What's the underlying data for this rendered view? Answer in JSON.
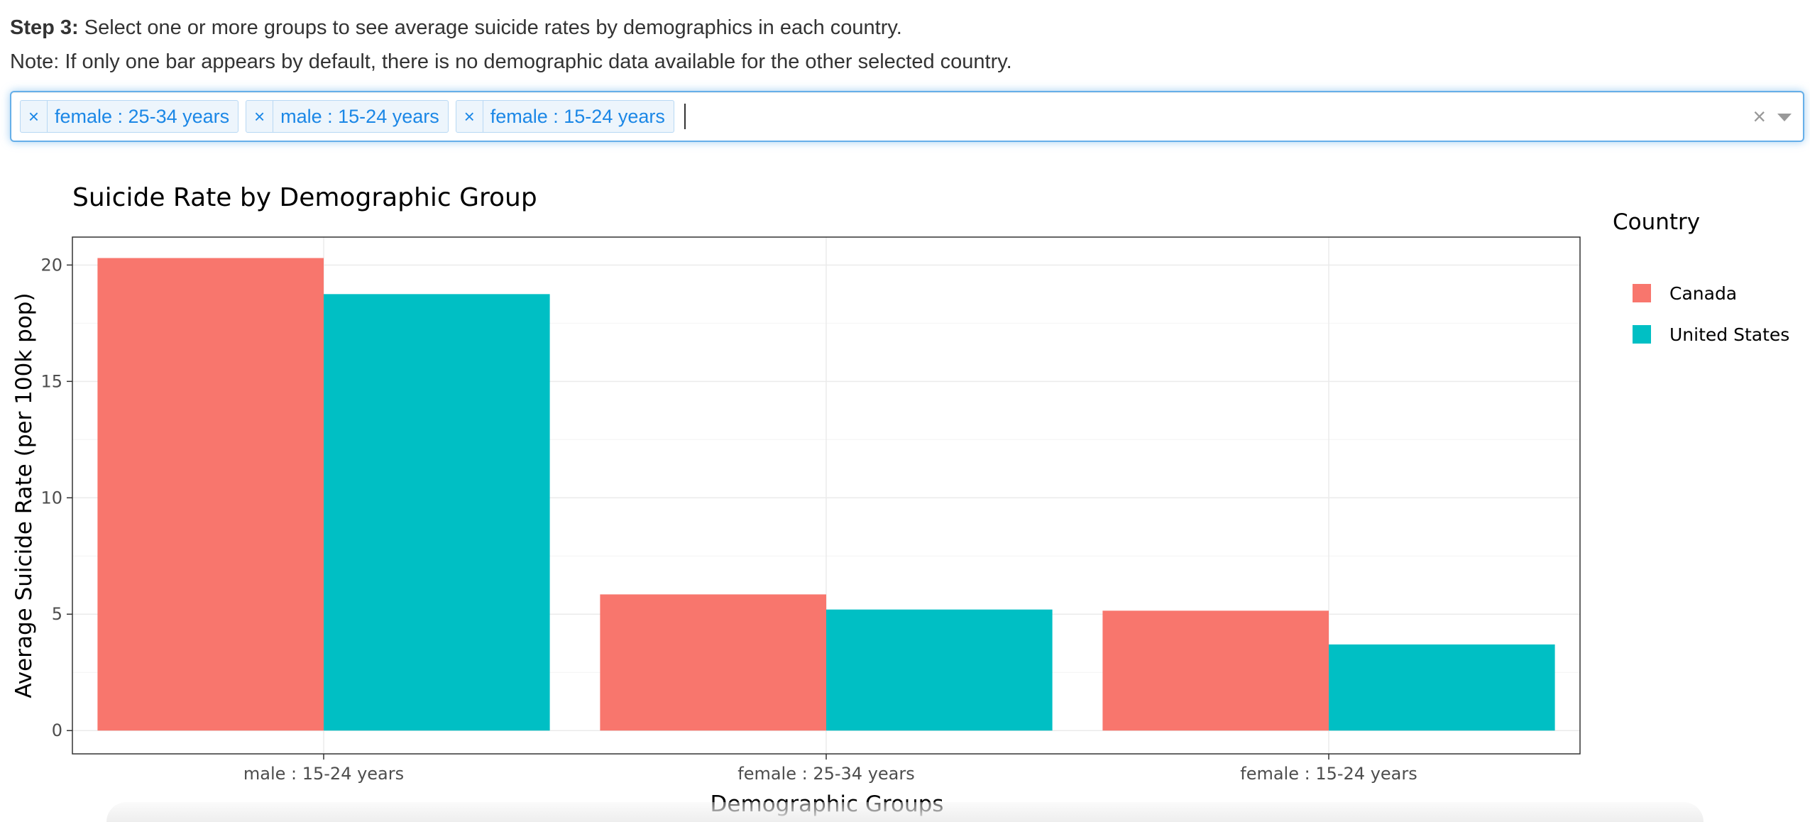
{
  "instructions": {
    "step_label": "Step 3:",
    "step_text": "Select one or more groups to see average suicide rates by demographics in each country.",
    "note_text": "Note: If only one bar appears by default, there is no demographic data available for the other selected country."
  },
  "selector": {
    "selected": [
      {
        "remove": "×",
        "label": "female : 25-34 years"
      },
      {
        "remove": "×",
        "label": "male : 15-24 years"
      },
      {
        "remove": "×",
        "label": "female : 15-24 years"
      }
    ],
    "clear_icon": "×",
    "dropdown_icon": "chevron-down-icon"
  },
  "colors": {
    "canada": "#F8766D",
    "united_states": "#00BFC4"
  },
  "chart_data": {
    "type": "bar",
    "title": "Suicide Rate by Demographic Group",
    "xlabel": "Demographic Groups",
    "ylabel": "Average Suicide Rate (per 100k pop)",
    "categories": [
      "male : 15-24 years",
      "female : 25-34 years",
      "female : 15-24 years"
    ],
    "series": [
      {
        "name": "Canada",
        "values": [
          20.3,
          5.85,
          5.15
        ]
      },
      {
        "name": "United States",
        "values": [
          18.75,
          5.2,
          3.7
        ]
      }
    ],
    "ylim": [
      -1.0,
      21.2
    ],
    "yticks": [
      0,
      5,
      10,
      15,
      20
    ],
    "legend_title": "Country",
    "legend_position": "right",
    "grid": true
  }
}
